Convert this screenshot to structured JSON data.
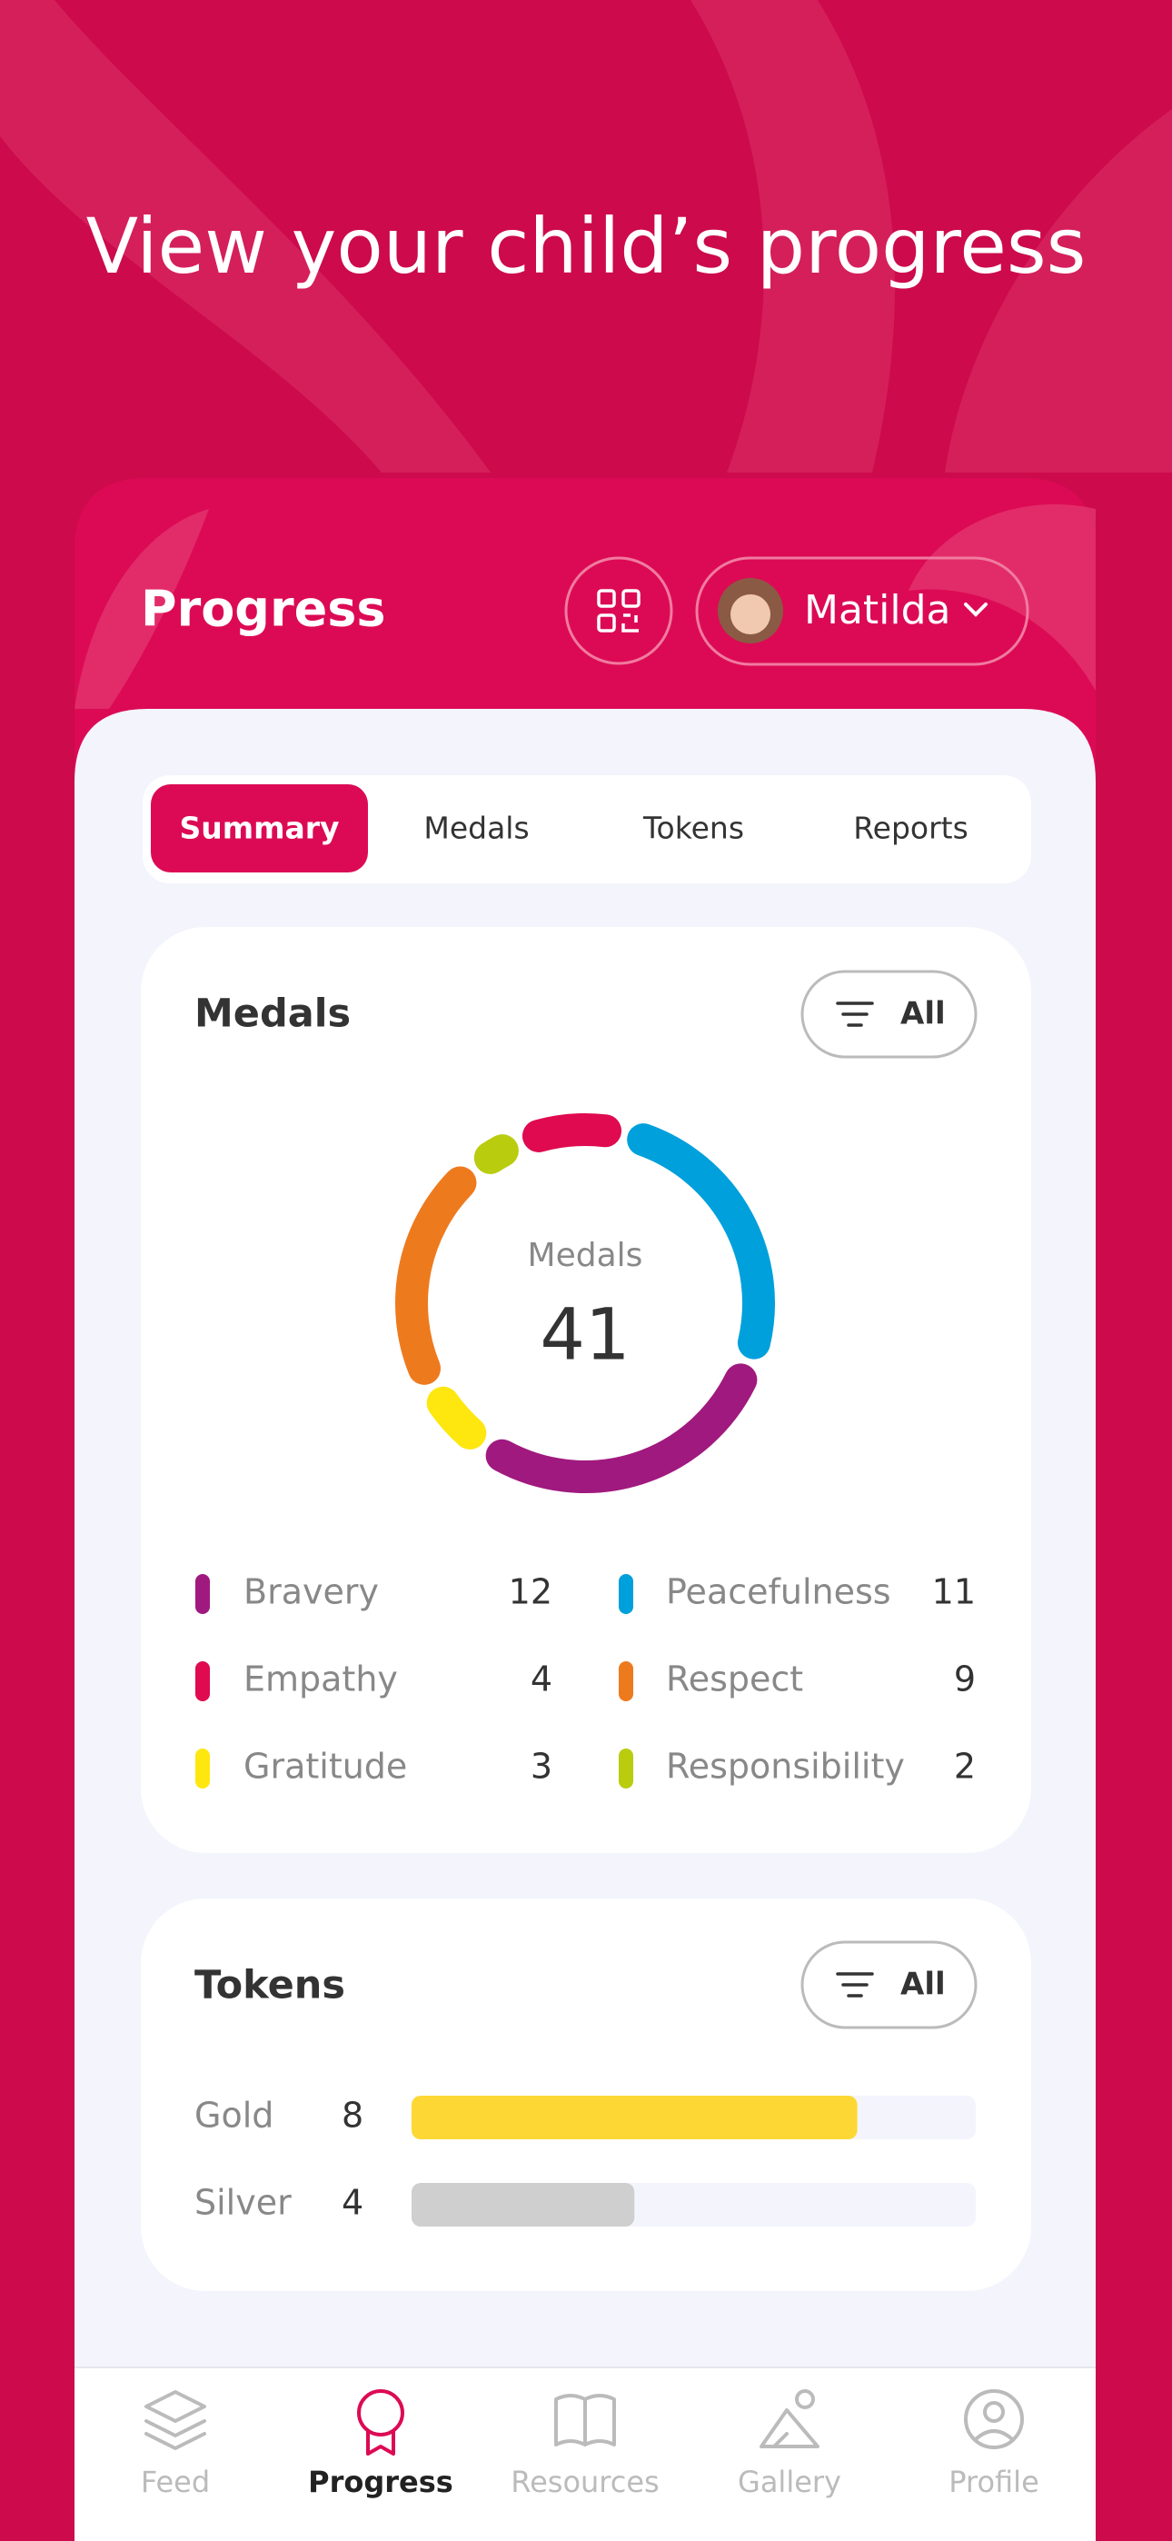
{
  "header": {
    "title": "View your child’s progress"
  },
  "app": {
    "title": "Progress",
    "child_name": "Matilda"
  },
  "tabs": [
    {
      "label": "Summary",
      "active": true
    },
    {
      "label": "Medals",
      "active": false
    },
    {
      "label": "Tokens",
      "active": false
    },
    {
      "label": "Reports",
      "active": false
    }
  ],
  "medals": {
    "title": "Medals",
    "filter": "All",
    "center_label": "Medals",
    "total": 41,
    "items": [
      {
        "name": "Bravery",
        "value": 12,
        "color": "#a0197e"
      },
      {
        "name": "Peacefulness",
        "value": 11,
        "color": "#00a0dc"
      },
      {
        "name": "Empathy",
        "value": 4,
        "color": "#df0a50"
      },
      {
        "name": "Respect",
        "value": 9,
        "color": "#ee7a1e"
      },
      {
        "name": "Gratitude",
        "value": 3,
        "color": "#fde70f"
      },
      {
        "name": "Responsibility",
        "value": 2,
        "color": "#b9cc0e"
      }
    ]
  },
  "tokens": {
    "title": "Tokens",
    "filter": "All",
    "items": [
      {
        "name": "Gold",
        "value": 8,
        "color": "#fdd835"
      },
      {
        "name": "Silver",
        "value": 4,
        "color": "#cfcfcf"
      }
    ]
  },
  "nav": [
    {
      "label": "Feed",
      "active": false
    },
    {
      "label": "Progress",
      "active": true
    },
    {
      "label": "Resources",
      "active": false
    },
    {
      "label": "Gallery",
      "active": false
    },
    {
      "label": "Profile",
      "active": false
    }
  ]
}
